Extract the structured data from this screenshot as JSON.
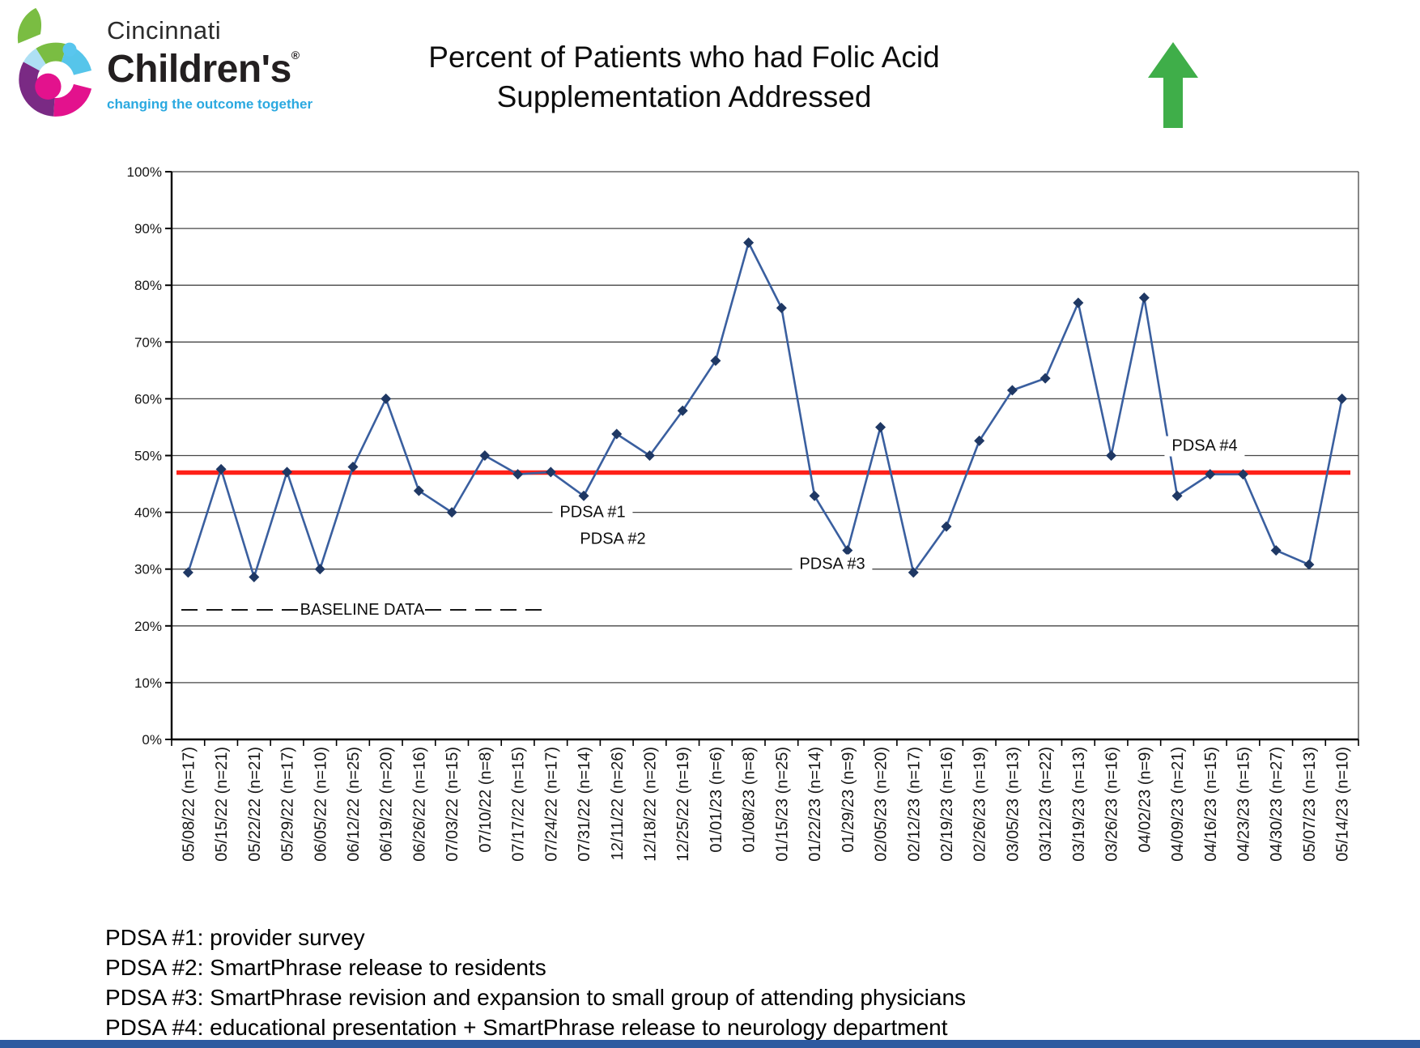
{
  "header": {
    "logo": {
      "line1": "Cincinnati",
      "line2": "Children's",
      "registered": "®",
      "tagline": "changing the outcome together",
      "mark_colors": [
        "#7ABD42",
        "#56C5EA",
        "#7A2A84",
        "#E3128D",
        "#AEE0F4"
      ]
    },
    "title_line1": "Percent of Patients who had Folic Acid",
    "title_line2": "Supplementation Addressed",
    "trend_arrow": {
      "icon": "up-arrow",
      "color": "#3FAE49"
    }
  },
  "chart_data": {
    "type": "line",
    "title": "Percent of Patients who had Folic Acid Supplementation Addressed",
    "x": [
      "05/08/22 (n=17)",
      "05/15/22 (n=21)",
      "05/22/22 (n=21)",
      "05/29/22 (n=17)",
      "06/05/22 (n=10)",
      "06/12/22 (n=25)",
      "06/19/22 (n=20)",
      "06/26/22 (n=16)",
      "07/03/22 (n=15)",
      "07/10/22 (n=8)",
      "07/17/22 (n=15)",
      "07/24/22 (n=17)",
      "07/31/22 (n=14)",
      "12/11/22 (n=26)",
      "12/18/22 (n=20)",
      "12/25/22 (n=19)",
      "01/01/23 (n=6)",
      "01/08/23 (n=8)",
      "01/15/23 (n=25)",
      "01/22/23 (n=14)",
      "01/29/23 (n=9)",
      "02/05/23 (n=20)",
      "02/12/23 (n=17)",
      "02/19/23 (n=16)",
      "02/26/23 (n=19)",
      "03/05/23 (n=13)",
      "03/12/23 (n=22)",
      "03/19/23 (n=13)",
      "03/26/23 (n=16)",
      "04/02/23 (n=9)",
      "04/09/23 (n=21)",
      "04/16/23 (n=15)",
      "04/23/23 (n=15)",
      "04/30/23 (n=27)",
      "05/07/23 (n=13)",
      "05/14/23 (n=10)"
    ],
    "sample_sizes": [
      17,
      21,
      21,
      17,
      10,
      25,
      20,
      16,
      15,
      8,
      15,
      17,
      14,
      26,
      20,
      19,
      6,
      8,
      25,
      14,
      9,
      20,
      17,
      16,
      19,
      13,
      22,
      13,
      16,
      9,
      21,
      15,
      15,
      27,
      13,
      10
    ],
    "values": [
      29.4,
      47.6,
      28.6,
      47.1,
      30.0,
      48.0,
      60.0,
      43.8,
      40.0,
      50.0,
      46.7,
      47.1,
      42.9,
      53.8,
      50.0,
      57.9,
      66.7,
      87.5,
      76.0,
      42.9,
      33.3,
      55.0,
      29.4,
      37.5,
      52.6,
      61.5,
      63.6,
      76.9,
      50.0,
      77.8,
      42.9,
      46.7,
      46.7,
      33.3,
      30.8,
      60.0
    ],
    "ylim": [
      0,
      100
    ],
    "y_ticks": [
      "100%",
      "90%",
      "80%",
      "70%",
      "60%",
      "50%",
      "40%",
      "30%",
      "20%",
      "10%",
      "0%"
    ],
    "grid": true,
    "legend": "none",
    "line_color": "#3A5F9F",
    "marker_color": "#1F3864",
    "marker_shape": "diamond",
    "centerline": {
      "value": 47,
      "color": "#ff2018"
    },
    "baseline": {
      "label": "BASELINE DATA",
      "value": 23,
      "x_start_index": 0,
      "x_end_index": 11
    },
    "annotations": [
      {
        "label": "PDSA #1",
        "at_x_label": "12/11/22 (n=26)",
        "y_pct": 40
      },
      {
        "label": "PDSA #2",
        "at_x_label": "12/18/22 (n=20)",
        "y_pct": 35
      },
      {
        "label": "PDSA #3",
        "at_x_label": "01/29/23 (n=9)",
        "y_pct": 30
      },
      {
        "label": "PDSA #4",
        "at_x_label": "04/23/23 (n=15)",
        "y_pct": 52
      }
    ]
  },
  "footnotes": [
    "PDSA #1: provider survey",
    "PDSA #2: SmartPhrase release to residents",
    "PDSA #3: SmartPhrase revision and expansion to small group of attending physicians",
    "PDSA #4: educational presentation + SmartPhrase release to neurology department"
  ],
  "footer_bar_color": "#2d5aa0"
}
